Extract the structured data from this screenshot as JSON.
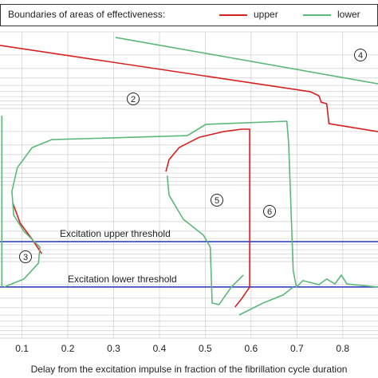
{
  "chart_data": {
    "type": "line",
    "legend_title": "Boundaries of areas of effectiveness:",
    "xlabel": "Delay from the excitation impulse in fraction of the fibrillation cycle duration",
    "xlim": [
      0.052,
      0.877
    ],
    "ylim": [
      0,
      1
    ],
    "xticks": [
      0.1,
      0.2,
      0.3,
      0.4,
      0.5,
      0.6,
      0.7,
      0.8
    ],
    "grid": true,
    "series": [
      {
        "name": "upper",
        "color": "#d62020",
        "x": [
          0.052,
          0.73,
          0.748,
          0.753,
          0.765,
          0.77,
          0.877,
          null,
          0.08,
          0.096,
          0.122,
          0.143,
          null,
          0.414,
          0.421,
          0.443,
          0.487,
          0.539,
          0.579,
          0.597,
          0.597,
          0.579,
          0.565
        ],
        "values": [
          0.956,
          0.805,
          0.792,
          0.771,
          0.766,
          0.701,
          0.675,
          null,
          0.442,
          0.377,
          0.325,
          0.278,
          null,
          0.545,
          0.584,
          0.623,
          0.657,
          0.675,
          0.683,
          0.683,
          0.169,
          0.13,
          0.104
        ]
      },
      {
        "name": "lower",
        "color": "#5cb87a",
        "x": [
          0.304,
          0.877,
          null,
          0.056,
          0.056,
          null,
          0.061,
          0.104,
          0.136,
          0.139,
          0.104,
          0.082,
          0.078,
          0.09,
          0.122,
          0.165,
          0.461,
          0.501,
          0.678,
          0.682,
          0.692,
          0.699,
          0.713,
          0.748,
          0.765,
          0.783,
          0.797,
          0.809,
          0.877,
          null,
          0.417,
          0.421,
          0.452,
          0.496,
          0.511,
          0.515,
          0.53,
          0.557,
          0.583,
          null,
          0.574,
          0.626,
          0.67,
          0.692
        ],
        "values": [
          0.982,
          0.831,
          null,
          0.727,
          0.169,
          null,
          0.169,
          0.195,
          0.247,
          0.299,
          0.351,
          0.403,
          0.481,
          0.558,
          0.623,
          0.649,
          0.662,
          0.699,
          0.709,
          0.636,
          0.221,
          0.169,
          0.19,
          0.177,
          0.195,
          0.179,
          0.208,
          0.179,
          0.169,
          null,
          0.532,
          0.468,
          0.39,
          0.338,
          0.299,
          0.117,
          0.112,
          0.169,
          0.208,
          null,
          0.078,
          0.117,
          0.143,
          0.169
        ]
      }
    ],
    "thresholds": [
      {
        "label": "Excitation upper threshold",
        "value": 0.317,
        "color": "#2233bb"
      },
      {
        "label": "Excitation lower threshold",
        "value": 0.169,
        "color": "#2233bb"
      }
    ],
    "regions": [
      "2",
      "3",
      "4",
      "5",
      "6"
    ]
  }
}
